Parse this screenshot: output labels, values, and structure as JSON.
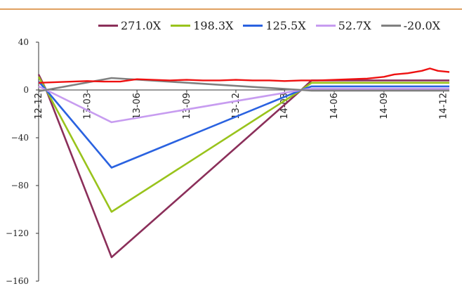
{
  "chart_data": {
    "type": "line",
    "title": "",
    "xlabel": "",
    "ylabel": "",
    "ylim": [
      -160,
      40
    ],
    "yticks": [
      40,
      0,
      -40,
      -80,
      -120,
      -160
    ],
    "xlim": [
      "2012-12-01",
      "2014-12-31"
    ],
    "xticks": [
      "12-12",
      "13-03",
      "13-06",
      "13-09",
      "13-12",
      "14-03",
      "14-06",
      "14-09",
      "14-12"
    ],
    "legend_position": "top",
    "series": [
      {
        "name": "271.0X",
        "color": "#8b2f5a",
        "points": [
          [
            "2012-12-01",
            13
          ],
          [
            "2012-12-15",
            0
          ],
          [
            "2013-04-15",
            -140
          ],
          [
            "2014-04-01",
            0
          ],
          [
            "2014-04-20",
            8
          ],
          [
            "2014-12-31",
            8
          ]
        ]
      },
      {
        "name": "198.3X",
        "color": "#99c31c",
        "points": [
          [
            "2012-12-01",
            11
          ],
          [
            "2012-12-15",
            0
          ],
          [
            "2013-04-15",
            -102
          ],
          [
            "2014-04-01",
            0
          ],
          [
            "2014-04-20",
            6
          ],
          [
            "2014-12-31",
            6
          ]
        ]
      },
      {
        "name": "125.5X",
        "color": "#2a62e0",
        "points": [
          [
            "2012-12-01",
            7
          ],
          [
            "2012-12-15",
            0
          ],
          [
            "2013-04-15",
            -65
          ],
          [
            "2014-04-01",
            0
          ],
          [
            "2014-04-20",
            3
          ],
          [
            "2014-12-31",
            3
          ]
        ]
      },
      {
        "name": "52.7X",
        "color": "#c79cf0",
        "points": [
          [
            "2012-12-01",
            3
          ],
          [
            "2012-12-15",
            0
          ],
          [
            "2013-04-15",
            -27
          ],
          [
            "2014-04-01",
            0
          ],
          [
            "2014-04-20",
            1
          ],
          [
            "2014-12-31",
            1
          ]
        ]
      },
      {
        "name": "-20.0X",
        "color": "#808080",
        "points": [
          [
            "2012-12-01",
            -1
          ],
          [
            "2012-12-15",
            0
          ],
          [
            "2013-04-15",
            10
          ],
          [
            "2014-04-01",
            0
          ],
          [
            "2014-04-20",
            -0.5
          ],
          [
            "2014-12-31",
            -0.5
          ]
        ]
      },
      {
        "name": "",
        "color": "#ee1111",
        "points": [
          [
            "2012-12-01",
            6
          ],
          [
            "2013-01-01",
            6.5
          ],
          [
            "2013-02-01",
            7
          ],
          [
            "2013-03-01",
            7.5
          ],
          [
            "2013-04-01",
            7
          ],
          [
            "2013-05-01",
            7
          ],
          [
            "2013-06-01",
            9
          ],
          [
            "2013-07-01",
            8.5
          ],
          [
            "2013-08-01",
            8
          ],
          [
            "2013-09-01",
            8.5
          ],
          [
            "2013-10-01",
            8
          ],
          [
            "2013-11-01",
            8
          ],
          [
            "2013-12-01",
            8.5
          ],
          [
            "2014-01-01",
            8
          ],
          [
            "2014-02-01",
            8
          ],
          [
            "2014-03-01",
            7.5
          ],
          [
            "2014-04-01",
            8
          ],
          [
            "2014-05-01",
            8
          ],
          [
            "2014-06-01",
            8.5
          ],
          [
            "2014-07-01",
            9
          ],
          [
            "2014-08-01",
            9.5
          ],
          [
            "2014-09-01",
            11
          ],
          [
            "2014-09-20",
            13
          ],
          [
            "2014-10-15",
            14
          ],
          [
            "2014-11-10",
            16
          ],
          [
            "2014-11-25",
            18
          ],
          [
            "2014-12-10",
            16
          ],
          [
            "2014-12-31",
            15
          ]
        ]
      }
    ]
  }
}
